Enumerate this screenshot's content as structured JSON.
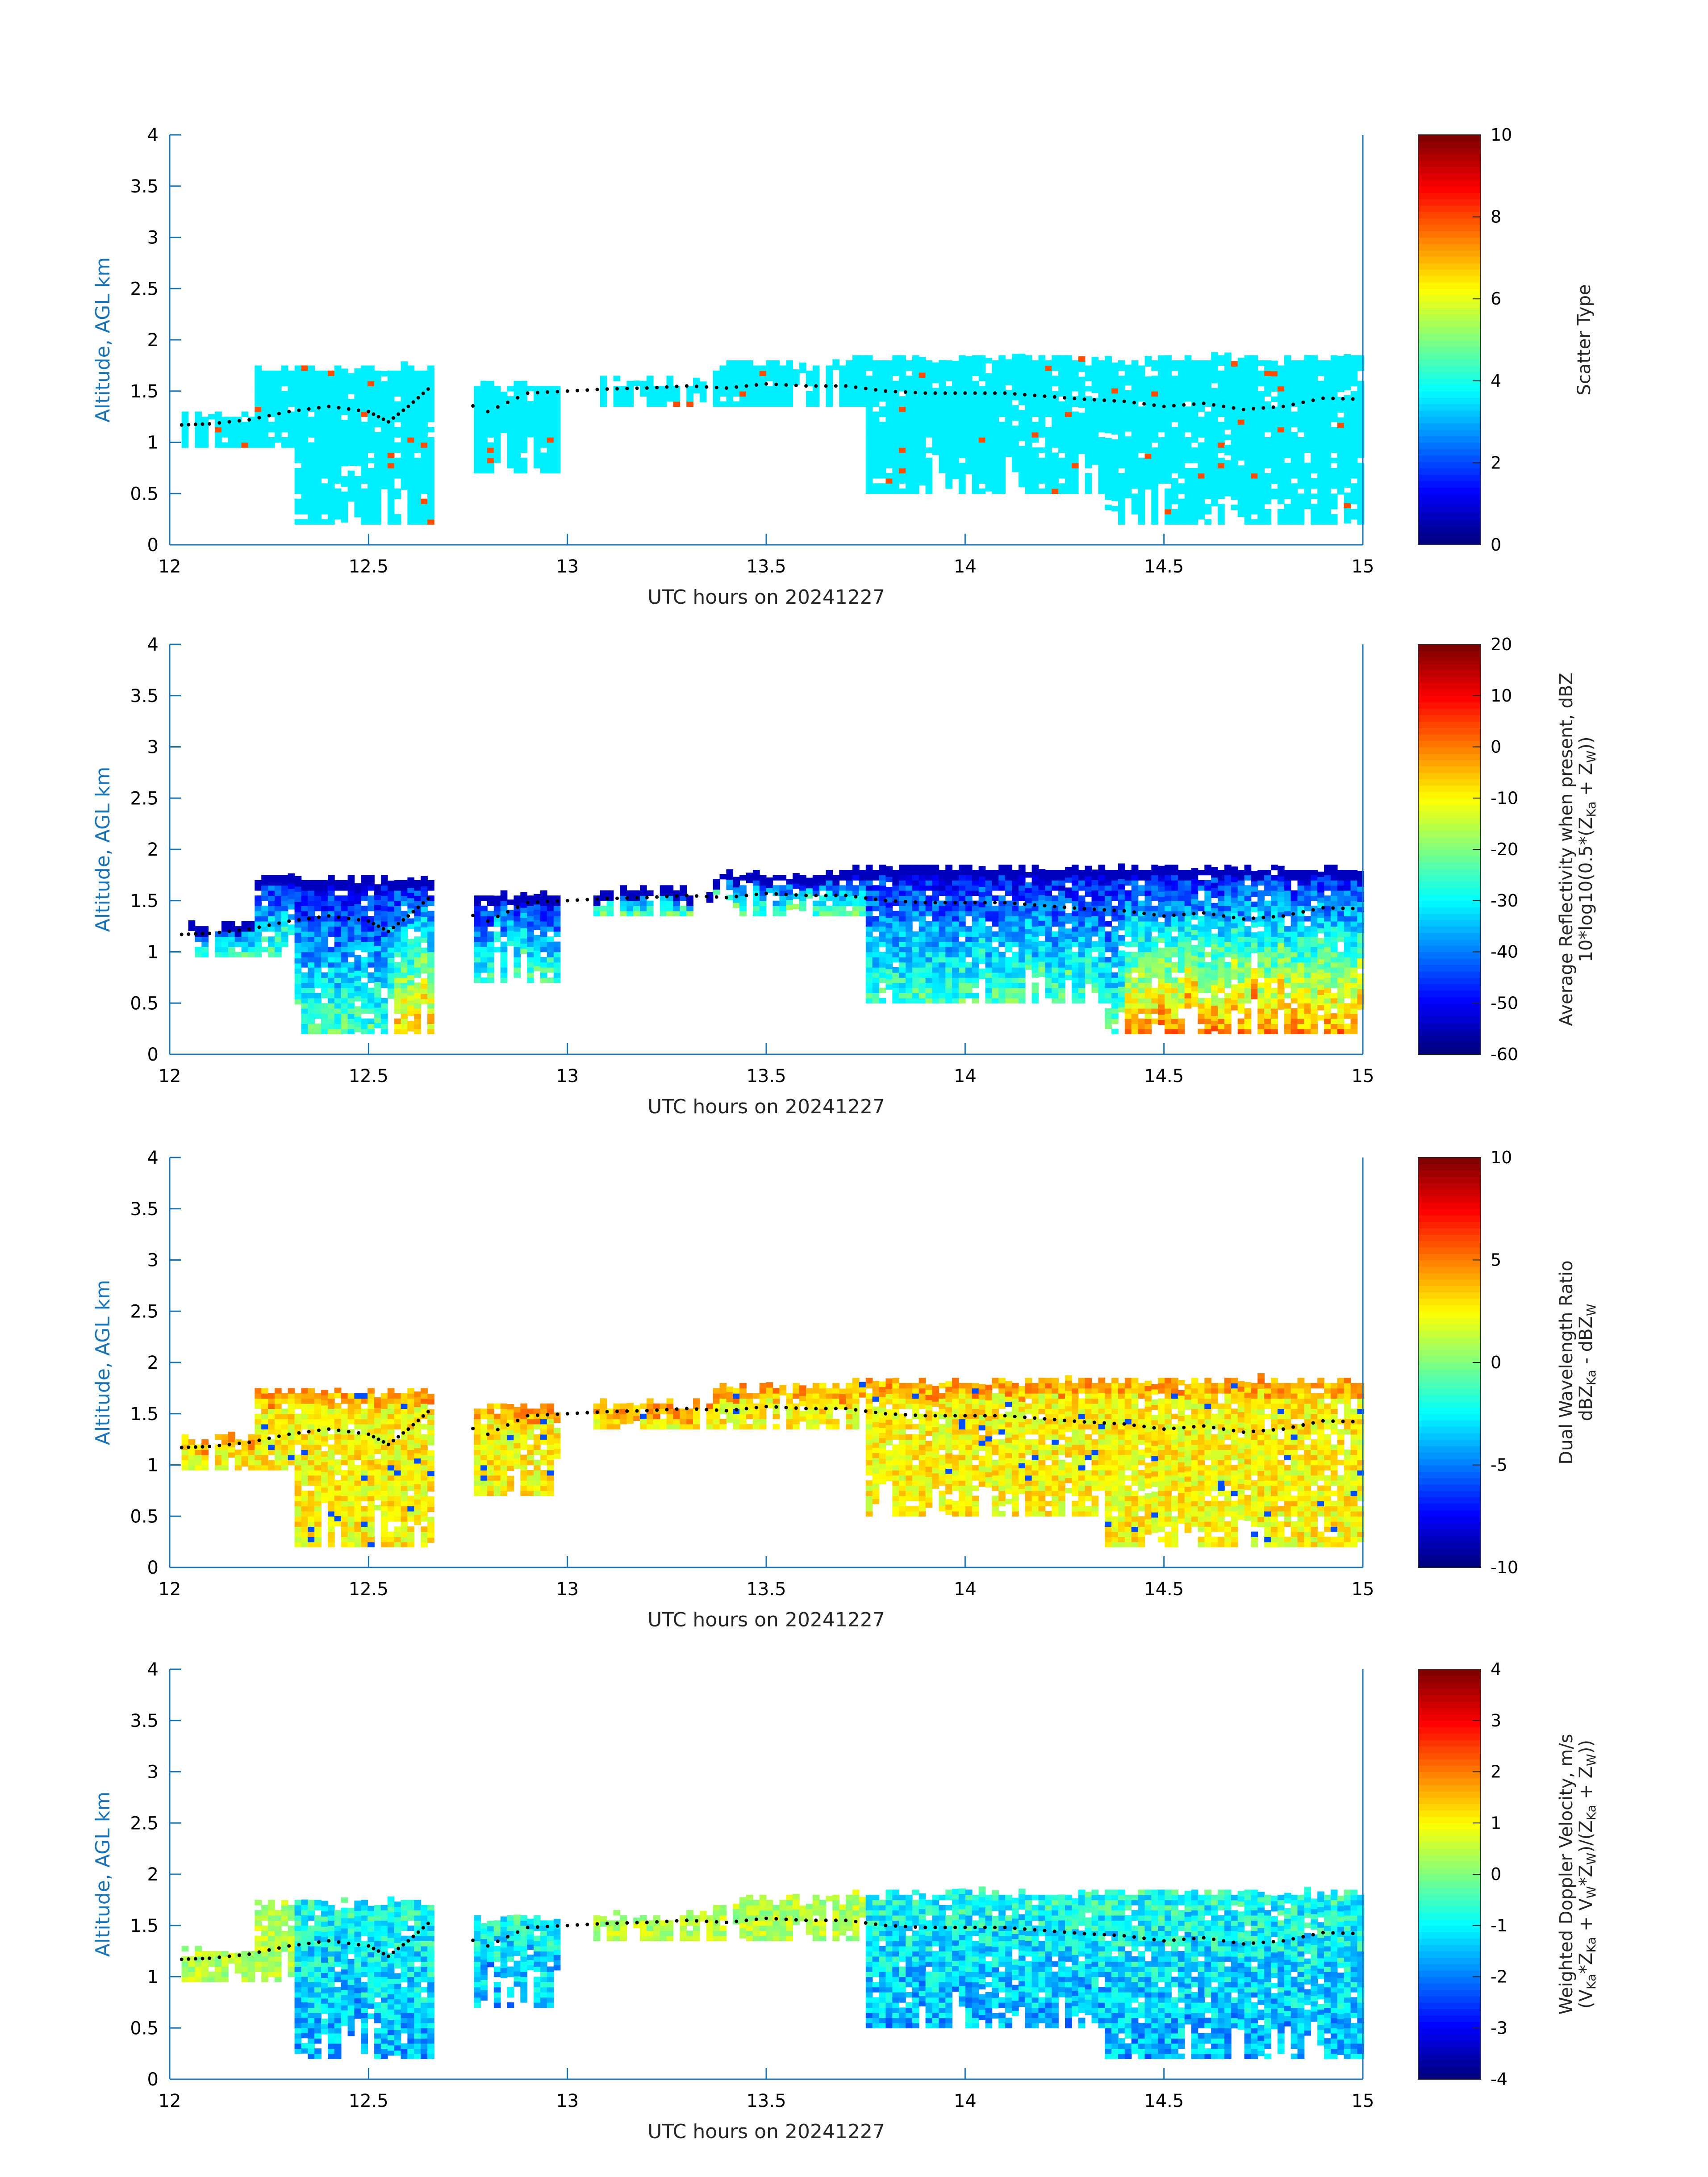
{
  "chart_data": [
    {
      "type": "heatmap",
      "panel": "scatter-type",
      "xlabel": "UTC hours on 20241227",
      "ylabel": "Altitude, AGL km",
      "xlim": [
        12,
        15
      ],
      "ylim": [
        0,
        4
      ],
      "xticks": [
        "12",
        "12.5",
        "13",
        "13.5",
        "14",
        "14.5",
        "15"
      ],
      "yticks": [
        "0",
        "0.5",
        "1",
        "1.5",
        "2",
        "2.5",
        "3",
        "3.5",
        "4"
      ],
      "colorbar": {
        "label": "Scatter Type",
        "label_sub": "",
        "range": [
          0,
          10
        ],
        "ticks": [
          "0",
          "2",
          "4",
          "6",
          "8",
          "10"
        ]
      },
      "description_value": "Field mostly value ~3.5 (cyan) with scattered ~8 (red) columns"
    },
    {
      "type": "heatmap",
      "panel": "reflectivity",
      "xlabel": "UTC hours on 20241227",
      "ylabel": "Altitude, AGL km",
      "xlim": [
        12,
        15
      ],
      "ylim": [
        0,
        4
      ],
      "xticks": [
        "12",
        "12.5",
        "13",
        "13.5",
        "14",
        "14.5",
        "15"
      ],
      "yticks": [
        "0",
        "0.5",
        "1",
        "1.5",
        "2",
        "2.5",
        "3",
        "3.5",
        "4"
      ],
      "colorbar": {
        "label": "Average Reflectivity when present, dBZ",
        "label_sub": "10*log10(0.5*(Z",
        "label_sub_rest": " + Z",
        "label_sub_end": "))",
        "sub_ka": "Ka",
        "sub_w": "W",
        "range": [
          -60,
          20
        ],
        "ticks": [
          "-60",
          "-50",
          "-40",
          "-30",
          "-20",
          "-10",
          "0",
          "10",
          "20"
        ]
      }
    },
    {
      "type": "heatmap",
      "panel": "dwr",
      "xlabel": "UTC hours on 20241227",
      "ylabel": "Altitude, AGL km",
      "xlim": [
        12,
        15
      ],
      "ylim": [
        0,
        4
      ],
      "xticks": [
        "12",
        "12.5",
        "13",
        "13.5",
        "14",
        "14.5",
        "15"
      ],
      "yticks": [
        "0",
        "0.5",
        "1",
        "1.5",
        "2",
        "2.5",
        "3",
        "3.5",
        "4"
      ],
      "colorbar": {
        "label": "Dual Wavelength Ratio",
        "label_sub": "dBZ",
        "label_sub_rest": " - dBZ",
        "sub_ka": "Ka",
        "sub_w": "W",
        "range": [
          -10,
          10
        ],
        "ticks": [
          "-10",
          "-5",
          "0",
          "5",
          "10"
        ]
      }
    },
    {
      "type": "heatmap",
      "panel": "velocity",
      "xlabel": "UTC hours on 20241227",
      "ylabel": "Altitude, AGL km",
      "xlim": [
        12,
        15
      ],
      "ylim": [
        0,
        4
      ],
      "xticks": [
        "12",
        "12.5",
        "13",
        "13.5",
        "14",
        "14.5",
        "15"
      ],
      "yticks": [
        "0",
        "0.5",
        "1",
        "1.5",
        "2",
        "2.5",
        "3",
        "3.5",
        "4"
      ],
      "colorbar": {
        "label": "Weighted Doppler Velocity, m/s",
        "label_sub": "(V",
        "sub_ka": "Ka",
        "sub_w": "W",
        "label_full_sub": "(VKa*ZKa + VW*ZW)/(ZKa + ZW)",
        "range": [
          -4,
          4
        ],
        "ticks": [
          "-4",
          "-3",
          "-2",
          "-1",
          "0",
          "1",
          "2",
          "3",
          "4"
        ]
      }
    }
  ],
  "cloud_base_dots_km": {
    "description": "Black dotted line of cloud top/base (km) plotted over each panel",
    "x": [
      12.03,
      12.1,
      12.2,
      12.3,
      12.4,
      12.5,
      12.55,
      12.6,
      12.65,
      12.8,
      12.9,
      13.0,
      13.1,
      13.2,
      13.3,
      13.4,
      13.5,
      13.6,
      13.7,
      13.8,
      13.9,
      14.0,
      14.1,
      14.2,
      14.3,
      14.4,
      14.5,
      14.6,
      14.7,
      14.8,
      14.9,
      15.0
    ],
    "y": [
      1.17,
      1.18,
      1.22,
      1.3,
      1.35,
      1.3,
      1.2,
      1.35,
      1.52,
      1.3,
      1.48,
      1.5,
      1.52,
      1.53,
      1.55,
      1.53,
      1.57,
      1.55,
      1.55,
      1.5,
      1.48,
      1.48,
      1.48,
      1.45,
      1.42,
      1.4,
      1.35,
      1.38,
      1.32,
      1.35,
      1.43,
      1.42
    ]
  }
}
